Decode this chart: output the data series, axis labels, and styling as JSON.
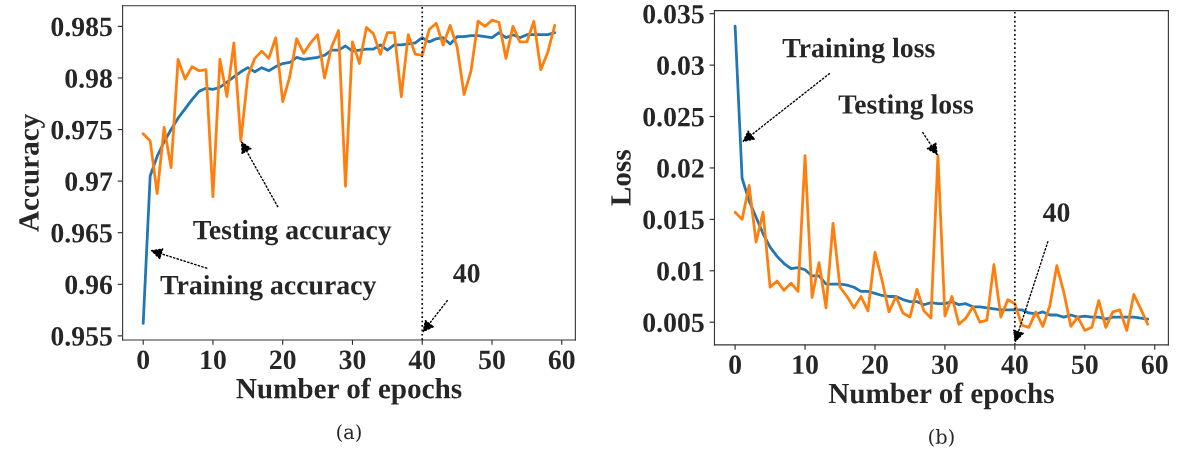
{
  "chart_data": [
    {
      "type": "line",
      "xlabel": "Number of epochs",
      "ylabel": "Accuracy",
      "x": [
        0,
        1,
        2,
        3,
        4,
        5,
        6,
        7,
        8,
        9,
        10,
        11,
        12,
        13,
        14,
        15,
        16,
        17,
        18,
        19,
        20,
        21,
        22,
        23,
        24,
        25,
        26,
        27,
        28,
        29,
        30,
        31,
        32,
        33,
        34,
        35,
        36,
        37,
        38,
        39,
        40,
        41,
        42,
        43,
        44,
        45,
        46,
        47,
        48,
        49,
        50,
        51,
        52,
        53,
        54,
        55,
        56,
        57,
        58,
        59
      ],
      "series": [
        {
          "color": "#1f77b4",
          "values": [
            0.9562,
            0.9705,
            0.9724,
            0.9738,
            0.975,
            0.9761,
            0.977,
            0.9779,
            0.9787,
            0.979,
            0.9789,
            0.9791,
            0.9796,
            0.9801,
            0.9806,
            0.981,
            0.9806,
            0.981,
            0.9807,
            0.9811,
            0.9814,
            0.9815,
            0.982,
            0.9818,
            0.9819,
            0.982,
            0.9822,
            0.9827,
            0.9827,
            0.9831,
            0.9826,
            0.9827,
            0.9828,
            0.9828,
            0.9832,
            0.9827,
            0.9832,
            0.9832,
            0.9833,
            0.9834,
            0.9839,
            0.9835,
            0.9838,
            0.9839,
            0.9833,
            0.984,
            0.984,
            0.9841,
            0.9841,
            0.984,
            0.9839,
            0.9844,
            0.9839,
            0.9842,
            0.9839,
            0.9842,
            0.9842,
            0.9842,
            0.9842,
            0.9844
          ]
        },
        {
          "color": "#ff7f0e",
          "values": [
            0.9746,
            0.9739,
            0.9688,
            0.9752,
            0.9713,
            0.9818,
            0.9799,
            0.9811,
            0.9807,
            0.9808,
            0.9685,
            0.9818,
            0.9782,
            0.9834,
            0.9739,
            0.9802,
            0.9819,
            0.9826,
            0.9819,
            0.9839,
            0.9777,
            0.9801,
            0.9838,
            0.9824,
            0.9834,
            0.9842,
            0.98,
            0.983,
            0.9846,
            0.9695,
            0.9835,
            0.9814,
            0.9849,
            0.9843,
            0.9823,
            0.9844,
            0.9844,
            0.9782,
            0.9842,
            0.9823,
            0.9822,
            0.9847,
            0.9853,
            0.9832,
            0.9851,
            0.983,
            0.9784,
            0.9807,
            0.9855,
            0.985,
            0.9856,
            0.9854,
            0.9819,
            0.985,
            0.9835,
            0.9835,
            0.9855,
            0.9808,
            0.9825,
            0.9851
          ]
        }
      ],
      "xlim": [
        -2.95,
        61.95
      ],
      "ylim": [
        0.9546,
        0.987
      ],
      "xticks": [
        0,
        10,
        20,
        30,
        40,
        50,
        60
      ],
      "yticks": [
        0.955,
        0.96,
        0.965,
        0.97,
        0.975,
        0.98,
        0.985
      ],
      "ref_lines": [
        {
          "axis": "x",
          "value": 40,
          "color": "#000000",
          "line_style": "dotted"
        }
      ],
      "annotations": [
        {
          "text": "Training accuracy",
          "x": 1,
          "y": 0.9633
        },
        {
          "text": "Testing accuracy",
          "x": 14,
          "y": 0.9739
        },
        {
          "text": "40",
          "x": 40,
          "y": 0.9553
        },
        "(a)"
      ],
      "grid": false,
      "marker": "none",
      "line_style": "solid"
    },
    {
      "type": "line",
      "xlabel": "Number of epochs",
      "ylabel": "Loss",
      "x": [
        0,
        1,
        2,
        3,
        4,
        5,
        6,
        7,
        8,
        9,
        10,
        11,
        12,
        13,
        14,
        15,
        16,
        17,
        18,
        19,
        20,
        21,
        22,
        23,
        24,
        25,
        26,
        27,
        28,
        29,
        30,
        31,
        32,
        33,
        34,
        35,
        36,
        37,
        38,
        39,
        40,
        41,
        42,
        43,
        44,
        45,
        46,
        47,
        48,
        49,
        50,
        51,
        52,
        53,
        54,
        55,
        56,
        57,
        58,
        59
      ],
      "series": [
        {
          "color": "#1f77b4",
          "values": [
            0.0338,
            0.019,
            0.0168,
            0.0152,
            0.0136,
            0.0123,
            0.0114,
            0.0107,
            0.0102,
            0.0103,
            0.0101,
            0.0095,
            0.0095,
            0.0087,
            0.0087,
            0.0087,
            0.0086,
            0.0084,
            0.008,
            0.008,
            0.0078,
            0.0076,
            0.0075,
            0.0075,
            0.0072,
            0.007,
            0.007,
            0.0067,
            0.0069,
            0.0068,
            0.0068,
            0.007,
            0.0067,
            0.0068,
            0.0065,
            0.0065,
            0.0064,
            0.0063,
            0.0062,
            0.0062,
            0.0062,
            0.0062,
            0.0059,
            0.0058,
            0.006,
            0.0057,
            0.0057,
            0.0055,
            0.0057,
            0.0055,
            0.0056,
            0.0055,
            0.0055,
            0.0053,
            0.0055,
            0.0055,
            0.0055,
            0.0055,
            0.0054,
            0.0053
          ]
        },
        {
          "color": "#ff7f0e",
          "values": [
            0.0157,
            0.015,
            0.0183,
            0.0128,
            0.0157,
            0.0084,
            0.009,
            0.0081,
            0.0088,
            0.008,
            0.0212,
            0.0074,
            0.0108,
            0.0064,
            0.0146,
            0.0084,
            0.0075,
            0.0064,
            0.0075,
            0.0061,
            0.0118,
            0.0091,
            0.006,
            0.0075,
            0.0059,
            0.0055,
            0.0082,
            0.0061,
            0.0054,
            0.0212,
            0.0056,
            0.0075,
            0.0048,
            0.0054,
            0.0065,
            0.005,
            0.0052,
            0.0106,
            0.0055,
            0.0072,
            0.0068,
            0.0047,
            0.0045,
            0.006,
            0.0046,
            0.0066,
            0.0105,
            0.0079,
            0.0046,
            0.0055,
            0.0042,
            0.0045,
            0.0071,
            0.0045,
            0.006,
            0.0062,
            0.0042,
            0.0077,
            0.0063,
            0.0048
          ]
        }
      ],
      "xlim": [
        -2.95,
        61.95
      ],
      "ylim": [
        0.0028,
        0.0353
      ],
      "xticks": [
        0,
        10,
        20,
        30,
        40,
        50,
        60
      ],
      "yticks": [
        0.005,
        0.01,
        0.015,
        0.02,
        0.025,
        0.03,
        0.035
      ],
      "ref_lines": [
        {
          "axis": "x",
          "value": 40,
          "color": "#000000",
          "line_style": "dotted"
        }
      ],
      "annotations": [
        {
          "text": "Training loss",
          "x": 1,
          "y": 0.0225
        },
        {
          "text": "Testing loss",
          "x": 29,
          "y": 0.0212
        },
        {
          "text": "40",
          "x": 40,
          "y": 0.003
        },
        "(b)"
      ],
      "grid": false,
      "marker": "none",
      "line_style": "solid"
    }
  ]
}
